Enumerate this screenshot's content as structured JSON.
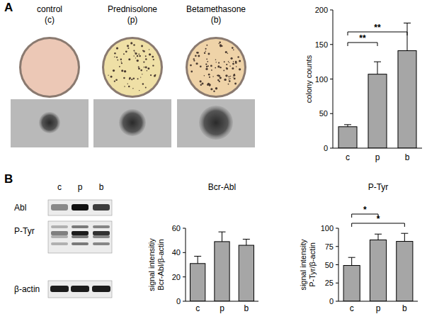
{
  "panel_labels": [
    "A",
    "B"
  ],
  "dishes": [
    {
      "label": "control",
      "sub": "(c)",
      "color": "#ecc8b6"
    },
    {
      "label": "Prednisolone",
      "sub": "(p)",
      "color": "#efe0a6"
    },
    {
      "label": "Betamethasone",
      "sub": "(b)",
      "color": "#efd3a8"
    }
  ],
  "blot": {
    "lanes": [
      "c",
      "p",
      "b"
    ],
    "rows": [
      "Abl",
      "P-Tyr",
      "β-actin"
    ]
  },
  "chart_data": [
    {
      "type": "bar",
      "y_label": "colony counts",
      "categories": [
        "c",
        "p",
        "b"
      ],
      "values": [
        31,
        107,
        141
      ],
      "errors": [
        3,
        18,
        40
      ],
      "color": "#a6a6a6",
      "ylim": [
        0,
        200
      ],
      "yticks": [
        0,
        50,
        100,
        150,
        200
      ],
      "annotations": [
        {
          "text": "**",
          "between": [
            "c",
            "p"
          ]
        },
        {
          "text": "**",
          "between": [
            "c",
            "b"
          ]
        }
      ]
    },
    {
      "type": "bar",
      "title": "Bcr-Abl",
      "y_label": "signal intensitiy\nBcr-Abl/β-actin",
      "categories": [
        "c",
        "p",
        "b"
      ],
      "values": [
        31,
        49,
        46
      ],
      "errors": [
        6,
        8,
        5
      ],
      "color": "#a6a6a6",
      "ylim": [
        0,
        60
      ],
      "yticks": [
        0,
        20,
        40,
        60
      ],
      "annotations": []
    },
    {
      "type": "bar",
      "title": "P-Tyr",
      "y_label": "signal intensity\nP-Tyr/β-actin",
      "categories": [
        "c",
        "p",
        "b"
      ],
      "values": [
        49,
        84,
        82
      ],
      "errors": [
        11,
        8,
        11
      ],
      "color": "#a6a6a6",
      "ylim": [
        0,
        100
      ],
      "yticks": [
        0,
        25,
        50,
        75,
        100
      ],
      "annotations": [
        {
          "text": "*",
          "between": [
            "c",
            "p"
          ]
        },
        {
          "text": "*",
          "between": [
            "c",
            "b"
          ]
        }
      ]
    }
  ]
}
